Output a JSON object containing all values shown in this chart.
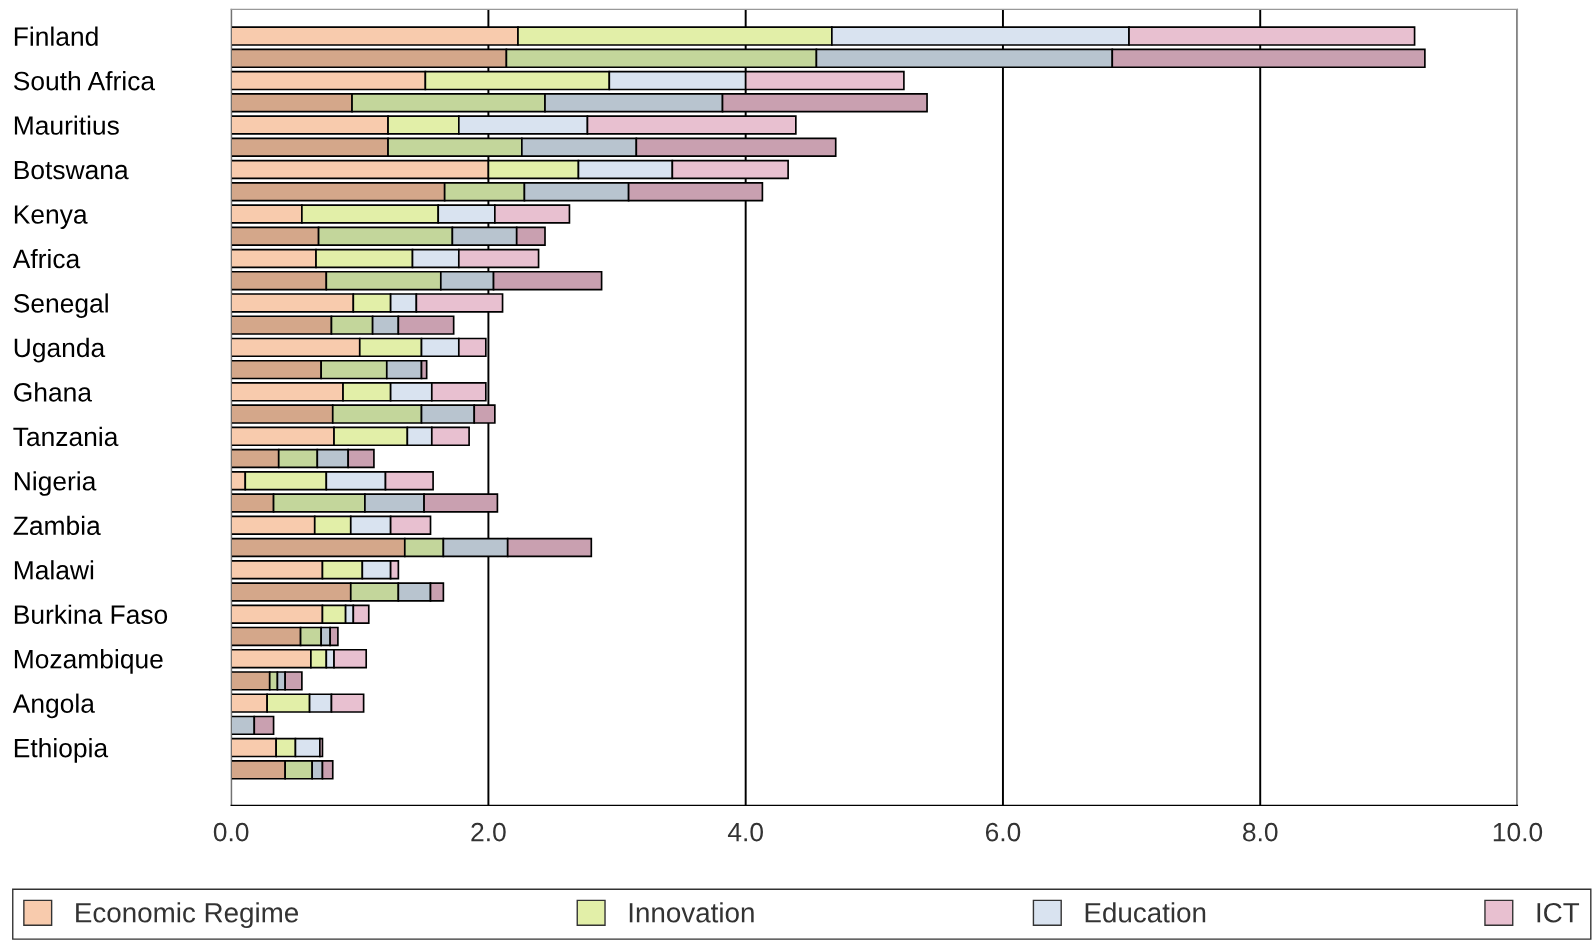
{
  "chart_data": {
    "type": "bar",
    "orientation": "horizontal",
    "stacked": true,
    "categories": [
      "Finland",
      null,
      "South Africa",
      null,
      "Mauritius",
      null,
      "Botswana",
      null,
      "Kenya",
      null,
      "Africa",
      null,
      "Senegal",
      null,
      "Uganda",
      null,
      "Ghana",
      null,
      "Tanzania",
      null,
      "Nigeria",
      null,
      "Zambia",
      null,
      "Malawi",
      null,
      "Burkina Faso",
      null,
      "Mozambique",
      null,
      "Angola",
      null,
      "Ethiopia",
      null
    ],
    "series": [
      {
        "name": "Economic Regime",
        "color": "#f8cbad",
        "values": [
          2.23,
          null,
          1.51,
          null,
          1.22,
          null,
          2.0,
          null,
          0.55,
          null,
          0.66,
          null,
          0.95,
          null,
          1.0,
          null,
          0.87,
          null,
          0.8,
          null,
          0.11,
          null,
          0.65,
          null,
          0.71,
          null,
          0.71,
          null,
          0.62,
          null,
          0.28,
          null,
          0.35,
          null
        ]
      },
      {
        "name": "Innovation",
        "color": "#e2efa8",
        "values": [
          2.44,
          null,
          1.43,
          null,
          0.55,
          null,
          0.7,
          null,
          1.06,
          null,
          0.75,
          null,
          0.29,
          null,
          0.48,
          null,
          0.37,
          null,
          0.57,
          null,
          0.63,
          null,
          0.28,
          null,
          0.31,
          null,
          0.18,
          null,
          0.12,
          null,
          0.33,
          null,
          0.15,
          null
        ]
      },
      {
        "name": "Education",
        "color": "#d9e3f0",
        "values": [
          2.31,
          null,
          1.06,
          null,
          1.0,
          null,
          0.73,
          null,
          0.44,
          null,
          0.36,
          null,
          0.2,
          null,
          0.29,
          null,
          0.32,
          null,
          0.19,
          null,
          0.46,
          null,
          0.31,
          null,
          0.22,
          null,
          0.06,
          null,
          0.06,
          null,
          0.17,
          null,
          0.19,
          null
        ]
      },
      {
        "name": "ICT",
        "color": "#e8c0d0",
        "values": [
          2.22,
          null,
          1.23,
          null,
          1.62,
          null,
          0.9,
          null,
          0.58,
          null,
          0.62,
          null,
          0.67,
          null,
          0.21,
          null,
          0.42,
          null,
          0.29,
          null,
          0.37,
          null,
          0.31,
          null,
          0.06,
          null,
          0.12,
          null,
          0.25,
          null,
          0.25,
          null,
          0.02,
          null
        ]
      },
      {
        "color": "#d4a78a",
        "values": [
          null,
          2.14,
          null,
          0.94,
          null,
          1.22,
          null,
          1.66,
          null,
          0.68,
          null,
          0.74,
          null,
          0.78,
          null,
          0.7,
          null,
          0.79,
          null,
          0.37,
          null,
          0.33,
          null,
          1.35,
          null,
          0.93,
          null,
          0.54,
          null,
          0.3,
          null,
          null,
          null,
          0.42
        ]
      },
      {
        "color": "#c3d69b",
        "values": [
          null,
          2.41,
          null,
          1.5,
          null,
          1.04,
          null,
          0.62,
          null,
          1.04,
          null,
          0.89,
          null,
          0.32,
          null,
          0.51,
          null,
          0.69,
          null,
          0.3,
          null,
          0.71,
          null,
          0.3,
          null,
          0.37,
          null,
          0.16,
          null,
          0.06,
          null,
          null,
          null,
          0.21
        ]
      },
      {
        "color": "#b8c4cf",
        "values": [
          null,
          2.3,
          null,
          1.38,
          null,
          0.89,
          null,
          0.81,
          null,
          0.5,
          null,
          0.41,
          null,
          0.2,
          null,
          0.27,
          null,
          0.41,
          null,
          0.24,
          null,
          0.46,
          null,
          0.5,
          null,
          0.25,
          null,
          0.07,
          null,
          0.06,
          null,
          0.18,
          null,
          0.08
        ]
      },
      {
        "color": "#c9a0b0",
        "values": [
          null,
          2.43,
          null,
          1.59,
          null,
          1.55,
          null,
          1.04,
          null,
          0.22,
          null,
          0.84,
          null,
          0.43,
          null,
          0.04,
          null,
          0.16,
          null,
          0.2,
          null,
          0.57,
          null,
          0.65,
          null,
          0.1,
          null,
          0.06,
          null,
          0.13,
          null,
          0.15,
          null,
          0.08
        ]
      }
    ],
    "xlim": [
      0,
      10
    ],
    "xticks": [
      {
        "value": 0,
        "label": "0.0"
      },
      {
        "value": 2,
        "label": "2.0"
      },
      {
        "value": 4,
        "label": "4.0"
      },
      {
        "value": 6,
        "label": "6.0"
      },
      {
        "value": 8,
        "label": "8.0"
      },
      {
        "value": 10,
        "label": "10.0"
      }
    ],
    "grid": "x",
    "legend": "bottom"
  }
}
